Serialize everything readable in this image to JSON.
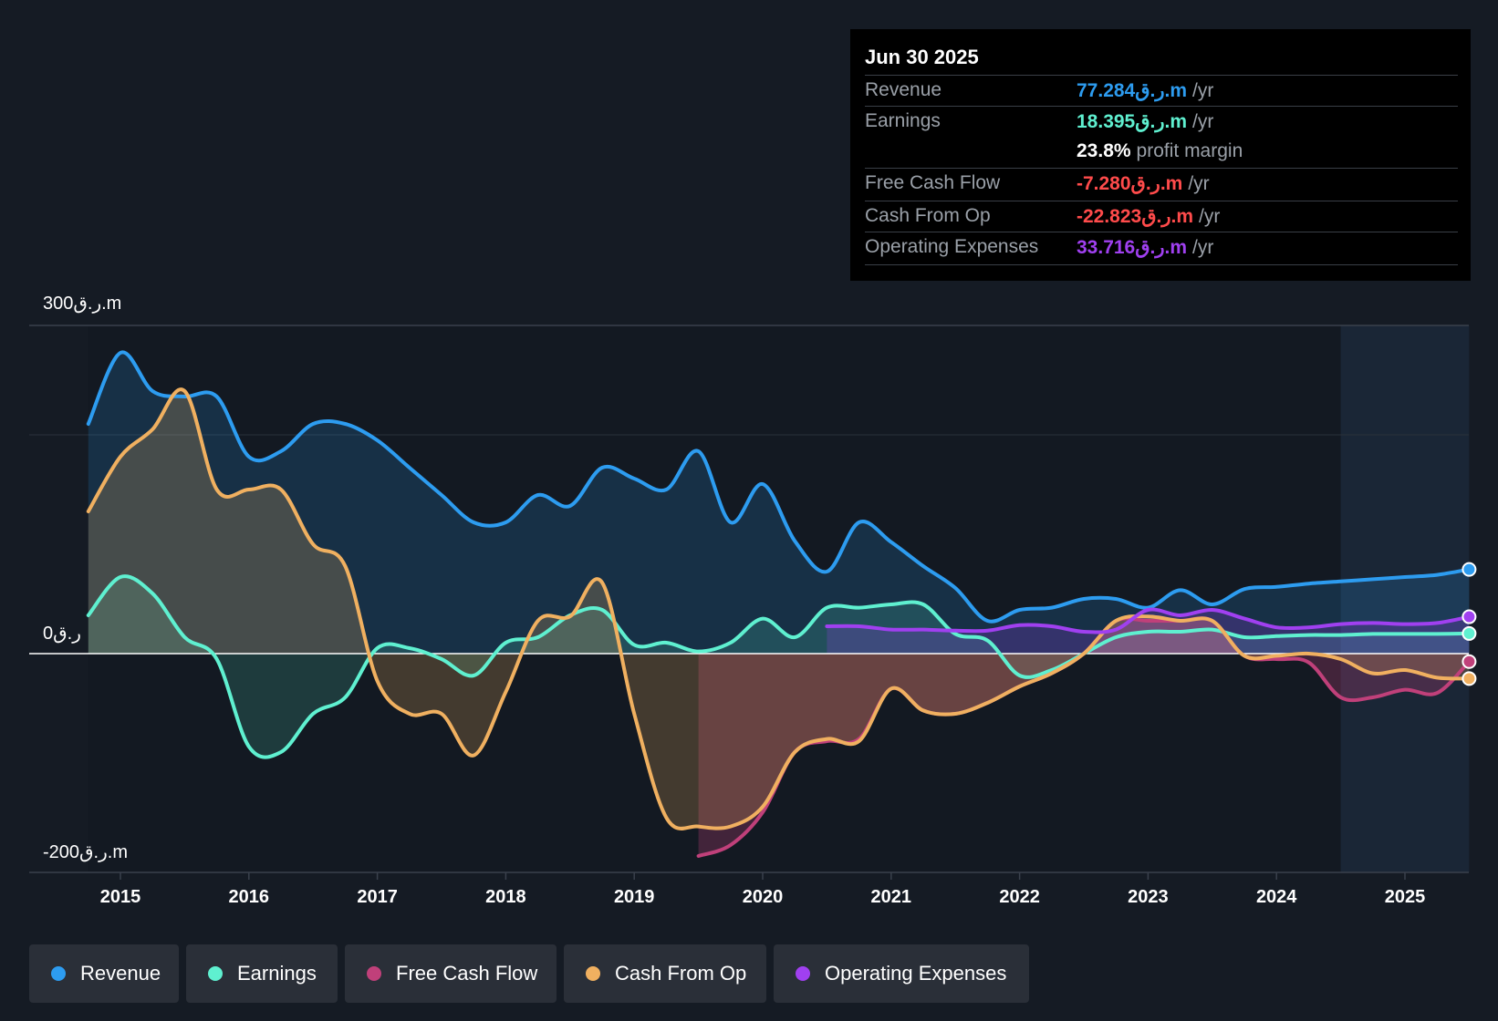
{
  "tooltip": {
    "date": "Jun 30 2025",
    "rows": [
      {
        "label": "Revenue",
        "value": "77.284ر.ق.m",
        "unit": "/yr",
        "color": "#2d9cf0"
      },
      {
        "label": "Earnings",
        "value": "18.395ر.ق.m",
        "unit": "/yr",
        "color": "#5ff0d0"
      },
      {
        "label": "",
        "value": "23.8%",
        "unit": "profit margin",
        "color": "#ffffff"
      },
      {
        "label": "Free Cash Flow",
        "value": "-7.280ر.ق.m",
        "unit": "/yr",
        "color": "#ff4b4b"
      },
      {
        "label": "Cash From Op",
        "value": "-22.823ر.ق.m",
        "unit": "/yr",
        "color": "#ff4b4b"
      },
      {
        "label": "Operating Expenses",
        "value": "33.716ر.ق.m",
        "unit": "/yr",
        "color": "#a040f0"
      }
    ]
  },
  "legend": [
    {
      "label": "Revenue",
      "color": "#2d9cf0"
    },
    {
      "label": "Earnings",
      "color": "#5ff0d0"
    },
    {
      "label": "Free Cash Flow",
      "color": "#c0407a"
    },
    {
      "label": "Cash From Op",
      "color": "#f0b060"
    },
    {
      "label": "Operating Expenses",
      "color": "#a040f0"
    }
  ],
  "chart_data": {
    "type": "line",
    "ylabel_top": "300ر.ق.m",
    "ylabel_zero": "0ر.ق",
    "ylabel_bottom": "-200ر.ق.m",
    "ylim": [
      -200,
      300
    ],
    "xlim": [
      2014.75,
      2025.5
    ],
    "x_ticks": [
      "2015",
      "2016",
      "2017",
      "2018",
      "2019",
      "2020",
      "2021",
      "2022",
      "2023",
      "2024",
      "2025"
    ],
    "forecast_start": 2024.5,
    "series": [
      {
        "name": "Revenue",
        "color": "#2d9cf0",
        "x": [
          2014.75,
          2015,
          2015.25,
          2015.5,
          2015.75,
          2016,
          2016.25,
          2016.5,
          2016.75,
          2017,
          2017.25,
          2017.5,
          2017.75,
          2018,
          2018.25,
          2018.5,
          2018.75,
          2019,
          2019.25,
          2019.5,
          2019.75,
          2020,
          2020.25,
          2020.5,
          2020.75,
          2021,
          2021.25,
          2021.5,
          2021.75,
          2022,
          2022.25,
          2022.5,
          2022.75,
          2023,
          2023.25,
          2023.5,
          2023.75,
          2024,
          2024.25,
          2024.5,
          2024.75,
          2025,
          2025.25,
          2025.5
        ],
        "values": [
          210,
          275,
          240,
          235,
          235,
          180,
          185,
          210,
          210,
          195,
          170,
          145,
          120,
          120,
          145,
          135,
          170,
          160,
          150,
          185,
          120,
          155,
          103,
          75,
          120,
          102,
          80,
          60,
          30,
          40,
          42,
          50,
          50,
          42,
          58,
          45,
          59,
          61,
          64,
          66,
          68,
          70,
          72,
          77
        ]
      },
      {
        "name": "Earnings",
        "color": "#5ff0d0",
        "x": [
          2014.75,
          2015,
          2015.25,
          2015.5,
          2015.75,
          2016,
          2016.25,
          2016.5,
          2016.75,
          2017,
          2017.25,
          2017.5,
          2017.75,
          2018,
          2018.25,
          2018.5,
          2018.75,
          2019,
          2019.25,
          2019.5,
          2019.75,
          2020,
          2020.25,
          2020.5,
          2020.75,
          2021,
          2021.25,
          2021.5,
          2021.75,
          2022,
          2022.25,
          2022.5,
          2022.75,
          2023,
          2023.25,
          2023.5,
          2023.75,
          2024,
          2024.25,
          2024.5,
          2024.75,
          2025,
          2025.25,
          2025.5
        ],
        "values": [
          35,
          70,
          55,
          15,
          -5,
          -85,
          -90,
          -55,
          -40,
          5,
          5,
          -5,
          -20,
          10,
          15,
          35,
          40,
          8,
          10,
          2,
          10,
          32,
          15,
          42,
          42,
          45,
          45,
          18,
          12,
          -20,
          -15,
          0,
          15,
          20,
          20,
          22,
          15,
          16,
          17,
          17,
          18,
          18,
          18,
          18.4
        ]
      },
      {
        "name": "Free Cash Flow",
        "color": "#c0407a",
        "x": [
          2019.5,
          2019.75,
          2020,
          2020.25,
          2020.5,
          2020.75,
          2021,
          2021.25,
          2021.5,
          2021.75,
          2022,
          2022.25,
          2022.5,
          2022.75,
          2023,
          2023.25,
          2023.5,
          2023.75,
          2024,
          2024.25,
          2024.5,
          2024.75,
          2025,
          2025.25,
          2025.5
        ],
        "values": [
          -185,
          -175,
          -145,
          -90,
          -80,
          -78,
          -32,
          -52,
          -55,
          -45,
          -30,
          -18,
          0,
          30,
          30,
          30,
          30,
          -2,
          -5,
          -8,
          -40,
          -40,
          -33,
          -36,
          -7.3
        ]
      },
      {
        "name": "Cash From Op",
        "color": "#f0b060",
        "x": [
          2014.75,
          2015,
          2015.25,
          2015.5,
          2015.75,
          2016,
          2016.25,
          2016.5,
          2016.75,
          2017,
          2017.25,
          2017.5,
          2017.75,
          2018,
          2018.25,
          2018.5,
          2018.75,
          2019,
          2019.25,
          2019.5,
          2019.75,
          2020,
          2020.25,
          2020.5,
          2020.75,
          2021,
          2021.25,
          2021.5,
          2021.75,
          2022,
          2022.25,
          2022.5,
          2022.75,
          2023,
          2023.25,
          2023.5,
          2023.75,
          2024,
          2024.25,
          2024.5,
          2024.75,
          2025,
          2025.25,
          2025.5
        ],
        "values": [
          130,
          180,
          205,
          240,
          150,
          150,
          150,
          100,
          80,
          -25,
          -55,
          -55,
          -93,
          -35,
          30,
          34,
          65,
          -55,
          -150,
          -158,
          -158,
          -140,
          -90,
          -78,
          -80,
          -32,
          -52,
          -55,
          -45,
          -30,
          -18,
          0,
          30,
          34,
          30,
          30,
          -2,
          -2,
          0,
          -5,
          -18,
          -15,
          -22,
          -22.8
        ]
      },
      {
        "name": "Operating Expenses",
        "color": "#a040f0",
        "x": [
          2020.5,
          2020.75,
          2021,
          2021.25,
          2021.5,
          2021.75,
          2022,
          2022.25,
          2022.5,
          2022.75,
          2023,
          2023.25,
          2023.5,
          2023.75,
          2024,
          2024.25,
          2024.5,
          2024.75,
          2025,
          2025.25,
          2025.5
        ],
        "values": [
          25,
          25,
          22,
          22,
          21,
          21,
          26,
          25,
          20,
          22,
          40,
          35,
          40,
          32,
          24,
          24,
          27,
          28,
          27,
          28,
          33.7
        ]
      }
    ]
  }
}
